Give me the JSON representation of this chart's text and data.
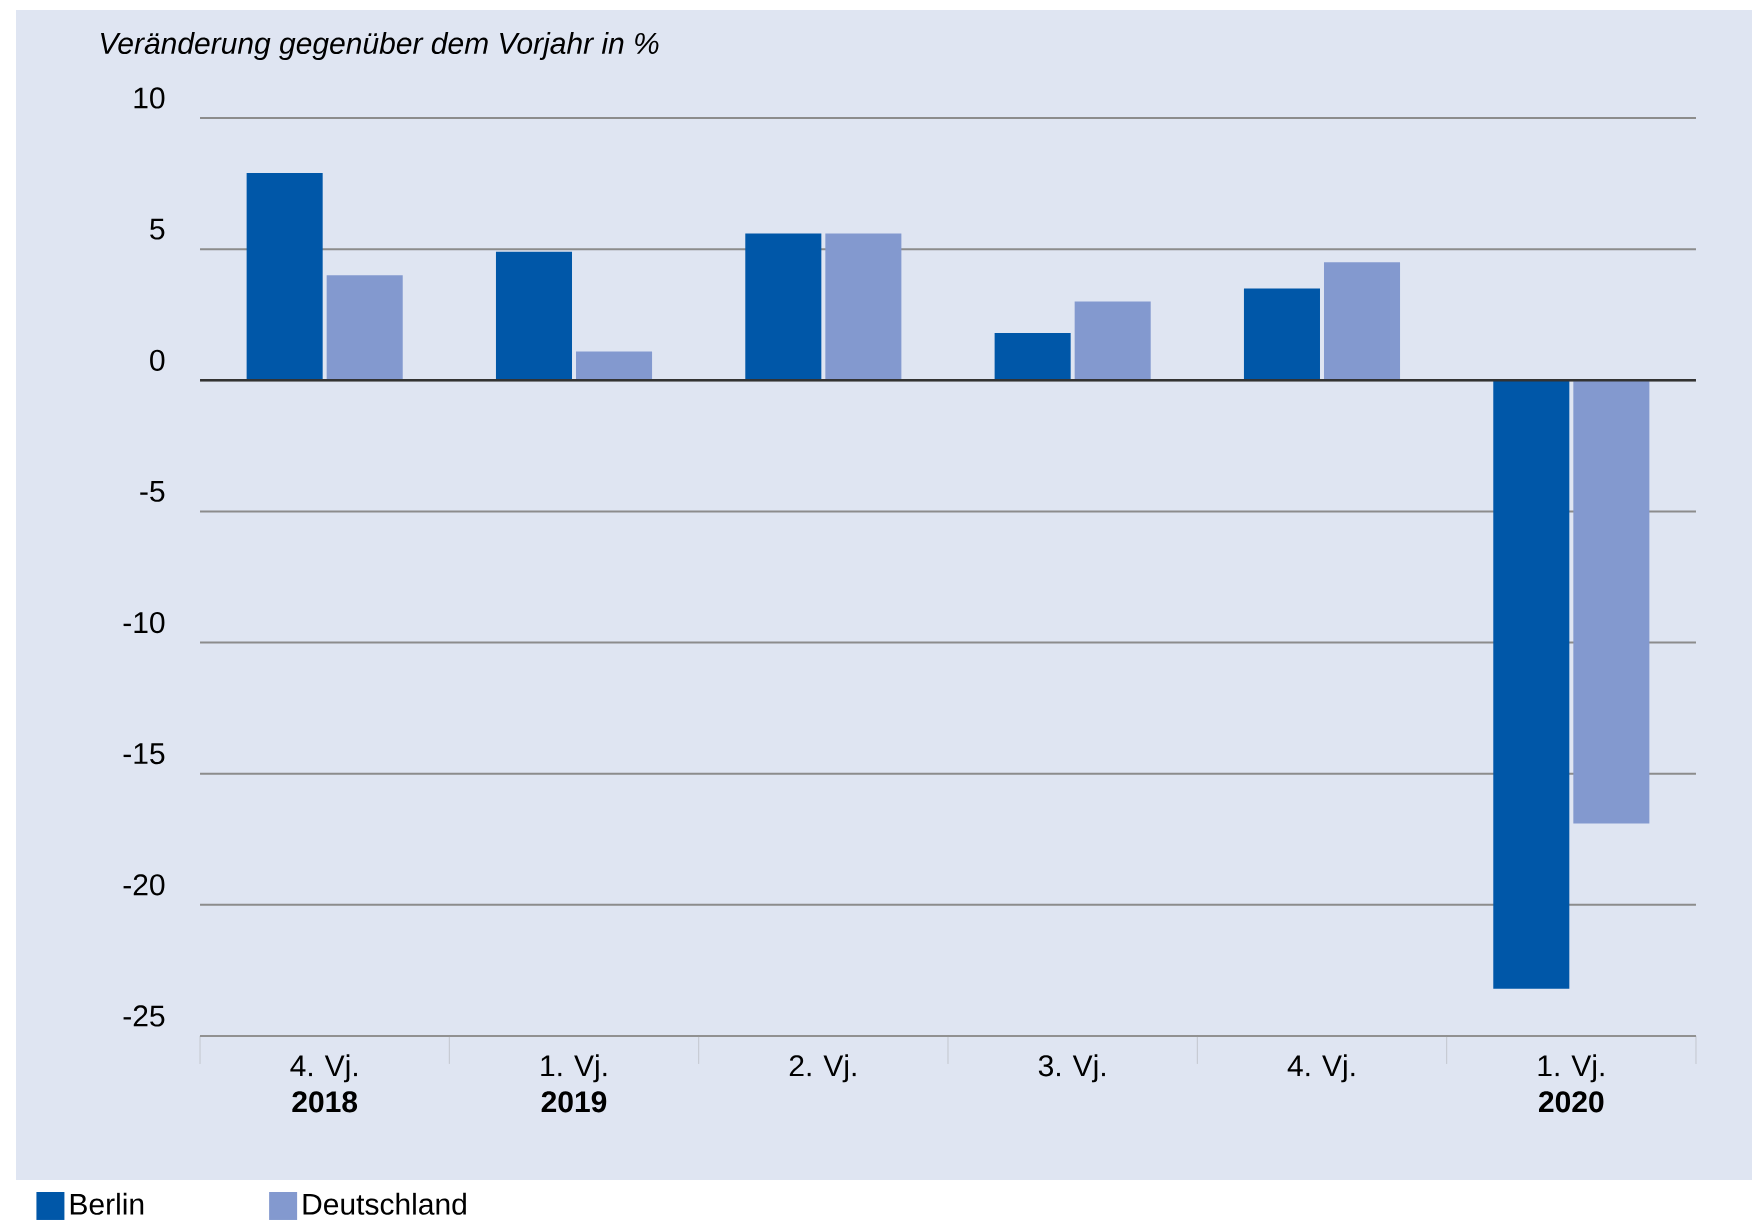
{
  "chart_data": {
    "type": "bar",
    "ylabel": "Veränderung gegenüber dem Vorjahr in %",
    "categories": [
      "4. Vj. **2018**",
      "1. Vj. **2019**",
      "2. Vj.",
      "3. Vj.",
      "4. Vj.",
      "1. Vj. **2020**"
    ],
    "series": [
      {
        "name": "Berlin",
        "color": "#0057a8",
        "values": [
          7.9,
          4.9,
          5.6,
          1.8,
          3.5,
          -23.2
        ]
      },
      {
        "name": "Deutschland",
        "color": "#8399cf",
        "values": [
          4.0,
          1.1,
          5.6,
          3.0,
          4.5,
          -16.9
        ]
      }
    ],
    "ylim": [
      -25,
      10
    ],
    "yticks": [
      -25,
      -20,
      -15,
      -10,
      -5,
      0,
      5,
      10
    ],
    "grid": "y",
    "legend": "bottom left"
  }
}
